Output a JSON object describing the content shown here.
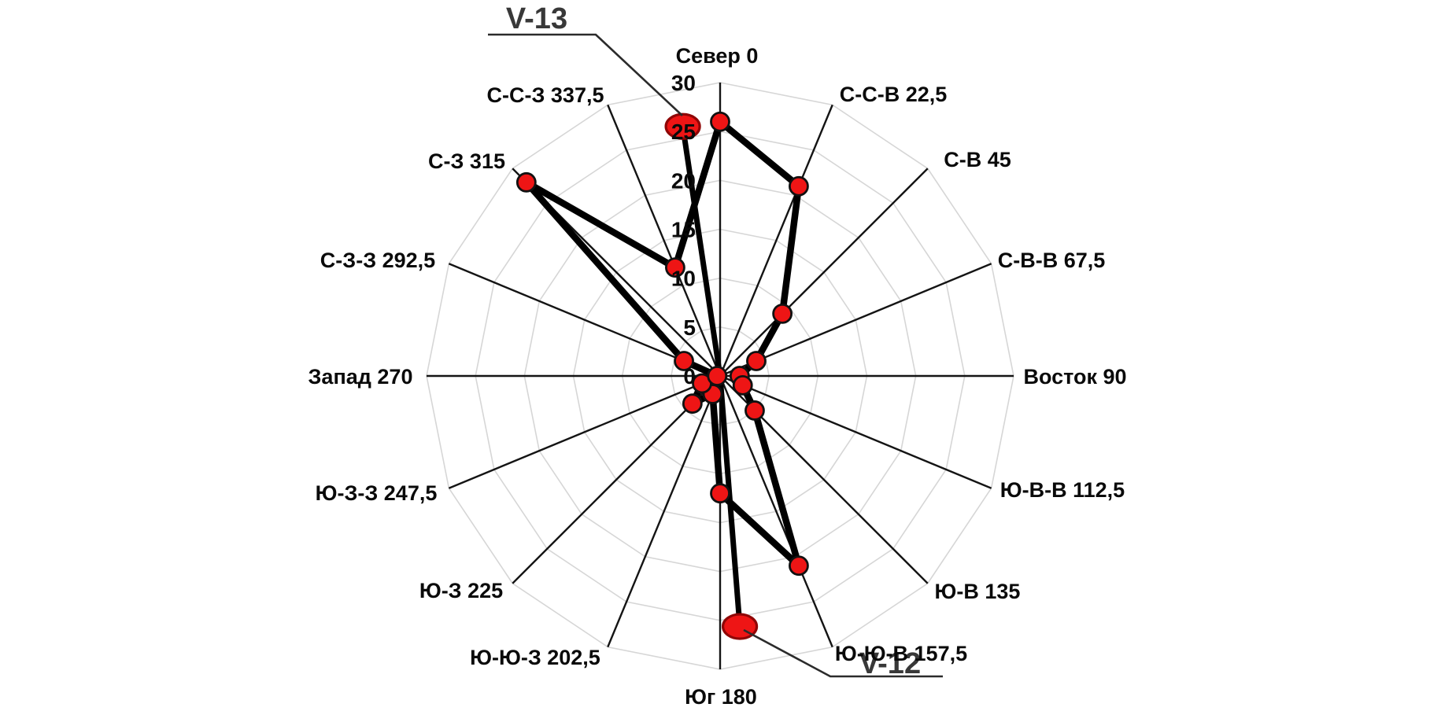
{
  "annotations": {
    "v13": "V-13",
    "v12": "V-12"
  },
  "chart_data": {
    "type": "radar",
    "categories": [
      "Север 0",
      "С-С-В 22,5",
      "С-В 45",
      "С-В-В 67,5",
      "Восток 90",
      "Ю-В-В 112,5",
      "Ю-В 135",
      "Ю-Ю-В 157,5",
      "Юг 180",
      "Ю-Ю-З 202,5",
      "Ю-З 225",
      "Ю-З-З 247,5",
      "Запад 270",
      "С-З-З 292,5",
      "С-З 315",
      "С-С-З 337,5"
    ],
    "azimuths_deg": [
      0,
      22.5,
      45,
      67.5,
      90,
      112.5,
      135,
      157.5,
      180,
      202.5,
      225,
      247.5,
      270,
      292.5,
      315,
      337.5
    ],
    "series": [
      {
        "values": [
          26,
          21,
          9,
          4,
          2,
          2.5,
          5,
          21,
          12,
          2,
          4,
          2,
          0.3,
          4,
          28,
          12
        ]
      }
    ],
    "radial_ticks": [
      0,
      5,
      10,
      15,
      20,
      25,
      30
    ],
    "rmax": 30,
    "grid": true,
    "legend": "none",
    "wells": [
      {
        "label": "V-13",
        "azimuth_deg": 351.5,
        "value": 25.8
      },
      {
        "label": "V-12",
        "azimuth_deg": 175.5,
        "value": 25.7
      }
    ],
    "colors": {
      "marker_fill": "#ee1515",
      "marker_stroke": "#111111",
      "series_line": "#000000",
      "well_ellipse_fill": "#ee1515",
      "well_ellipse_stroke": "#8f0606",
      "grid_ring": "#d6d6d6",
      "spoke": "#141414",
      "label_text": "#0a0a0a",
      "annotation_text": "#383838"
    }
  }
}
